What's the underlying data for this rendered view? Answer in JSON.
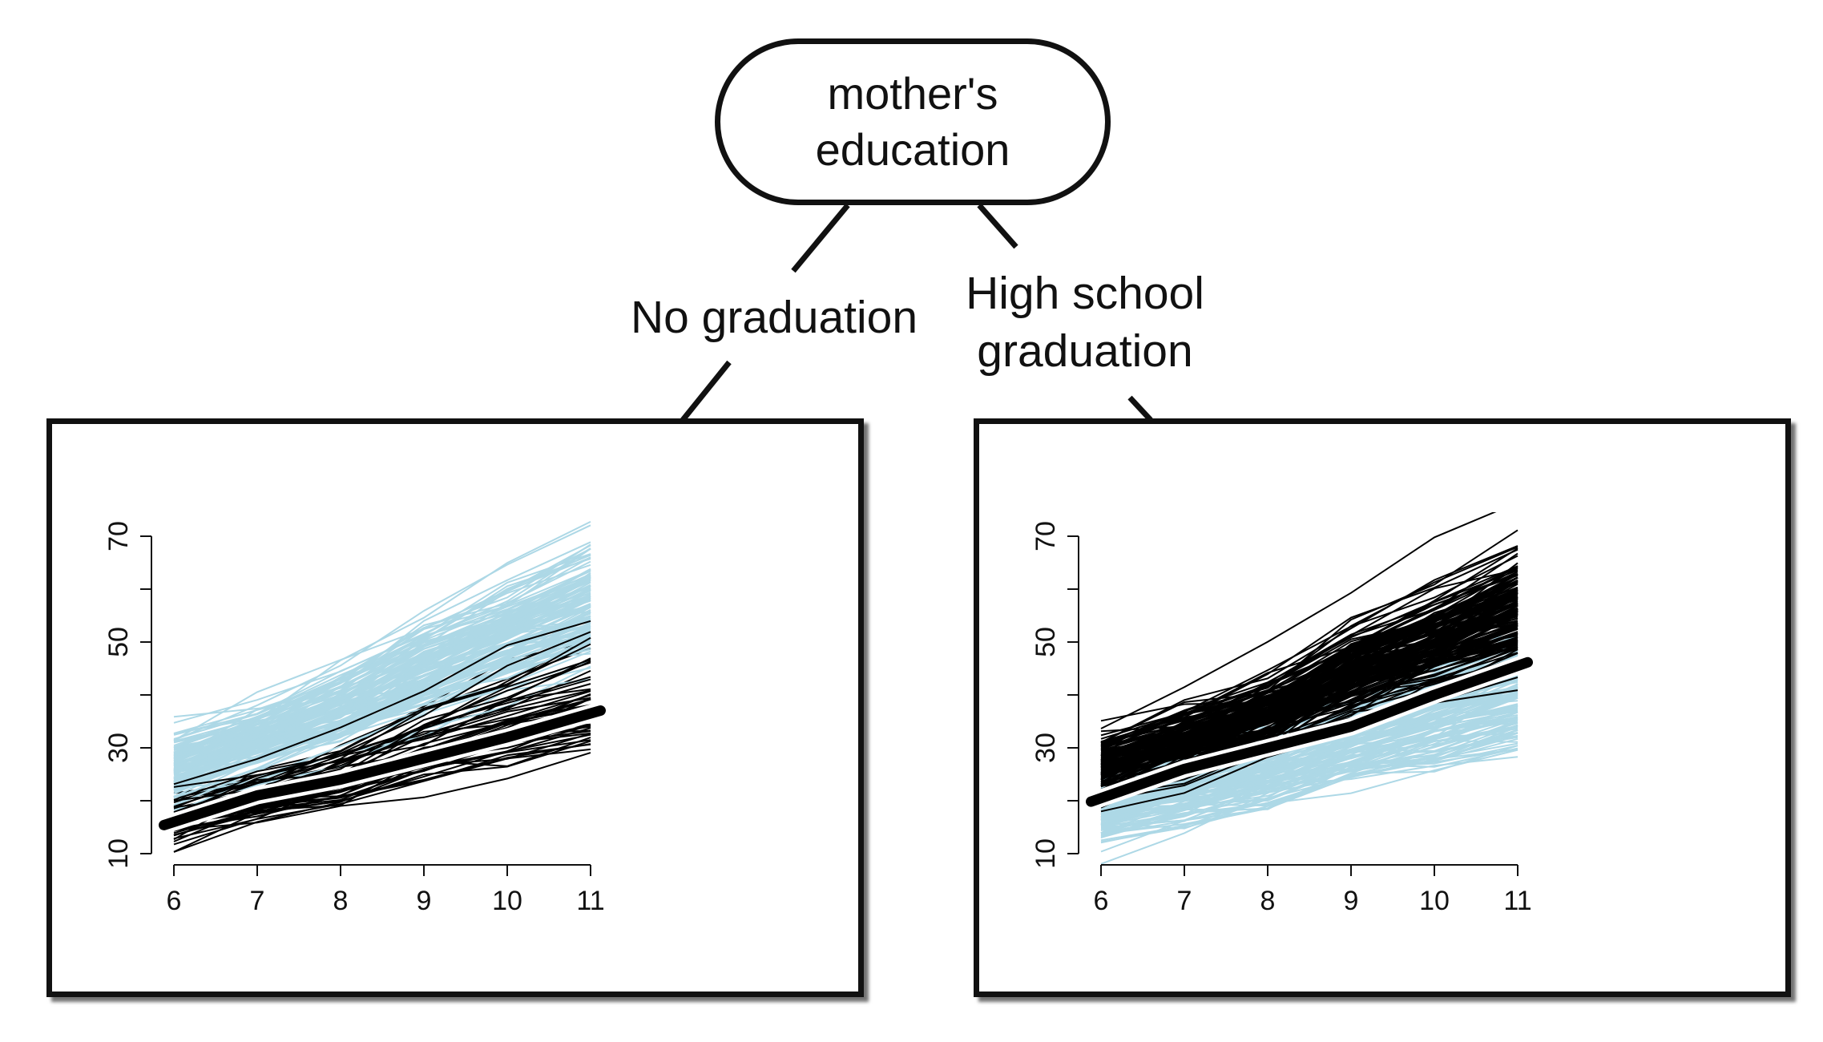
{
  "root": {
    "label": "mother's education"
  },
  "branches": [
    {
      "label": "No graduation"
    },
    {
      "label": "High school graduation"
    }
  ],
  "colors": {
    "highlight": "#add8e6",
    "other": "#000000",
    "mean": "#000000"
  },
  "chart_data": [
    {
      "type": "line",
      "x": [
        6,
        7,
        8,
        9,
        10,
        11
      ],
      "x_ticks": [
        "6",
        "7",
        "8",
        "9",
        "10",
        "11"
      ],
      "y_ticks": [
        "10",
        "30",
        "50",
        "70"
      ],
      "xlim": [
        6,
        11
      ],
      "ylim": [
        10,
        70
      ],
      "highlight_group": "No graduation",
      "mean_line": [
        16,
        21,
        24,
        28,
        32,
        36.5
      ]
    },
    {
      "type": "line",
      "x": [
        6,
        7,
        8,
        9,
        10,
        11
      ],
      "x_ticks": [
        "6",
        "7",
        "8",
        "9",
        "10",
        "11"
      ],
      "y_ticks": [
        "10",
        "30",
        "50",
        "70"
      ],
      "xlim": [
        6,
        11
      ],
      "ylim": [
        10,
        70
      ],
      "highlight_group": "High school graduation",
      "mean_line": [
        20.5,
        26,
        30,
        34,
        40,
        45.5
      ]
    }
  ]
}
